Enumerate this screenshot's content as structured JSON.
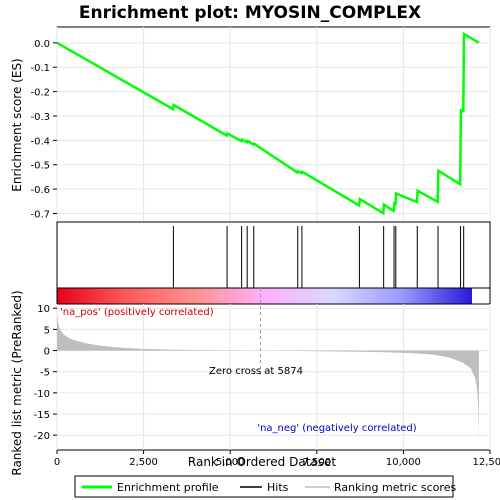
{
  "chart_data": [
    {
      "panel": "enrichment",
      "type": "line",
      "title": "Enrichment plot: MYOSIN_COMPLEX",
      "ylabel": "Enrichment score (ES)",
      "ylim": [
        -0.735,
        0.065
      ],
      "yticks": [
        0.0,
        -0.1,
        -0.2,
        -0.3,
        -0.4,
        -0.5,
        -0.6,
        -0.7
      ],
      "ytick_labels": [
        "0.0",
        "-0.1",
        "-0.2",
        "-0.3",
        "-0.4",
        "-0.5",
        "-0.6",
        "-0.7"
      ],
      "grid": true,
      "series": [
        {
          "color": "#00ff00",
          "x": [
            0,
            3350,
            3370,
            4900,
            4920,
            5320,
            5340,
            5480,
            5500,
            5670,
            5690,
            6940,
            6960,
            7060,
            7080,
            8720,
            8740,
            9420,
            9440,
            9720,
            9740,
            9770,
            9790,
            10390,
            10410,
            10990,
            11010,
            11640,
            11660,
            11730,
            11750,
            12180
          ],
          "y": [
            0.0,
            -0.272,
            -0.255,
            -0.38,
            -0.372,
            -0.403,
            -0.397,
            -0.408,
            -0.402,
            -0.417,
            -0.414,
            -0.532,
            -0.527,
            -0.535,
            -0.529,
            -0.667,
            -0.641,
            -0.699,
            -0.664,
            -0.69,
            -0.658,
            -0.66,
            -0.618,
            -0.653,
            -0.607,
            -0.652,
            -0.525,
            -0.58,
            -0.277,
            -0.28,
            0.036,
            0.0
          ]
        }
      ]
    },
    {
      "panel": "hits",
      "type": "scatter",
      "hit_positions": [
        3360,
        4910,
        5330,
        5490,
        5680,
        6950,
        7070,
        8730,
        9430,
        9730,
        9780,
        10400,
        11000,
        11650,
        11740
      ]
    },
    {
      "panel": "ranked_metric",
      "type": "area",
      "xlabel": "Rank in Ordered Dataset",
      "ylabel": "Ranked list metric (PreRanked)",
      "xlim": [
        0,
        12500
      ],
      "ylim": [
        -23.5,
        11
      ],
      "xticks": [
        0,
        2500,
        5000,
        7500,
        10000,
        12500
      ],
      "xtick_labels": [
        "0",
        "2,500",
        "5,000",
        "7,500",
        "10,000",
        "12,500"
      ],
      "yticks": [
        10,
        5,
        0,
        -5,
        -10,
        -15,
        -20
      ],
      "ytick_labels": [
        "10",
        "5",
        "0",
        "-5",
        "-10",
        "-15",
        "-20"
      ],
      "grid": true,
      "x": [
        0,
        40,
        100,
        200,
        350,
        600,
        900,
        1300,
        1800,
        2500,
        3500,
        4500,
        5500,
        5874,
        7000,
        8500,
        9500,
        10200,
        10800,
        11300,
        11700,
        11950,
        12080,
        12130,
        12160,
        12175,
        12180
      ],
      "values": [
        8.8,
        6.2,
        4.8,
        3.8,
        2.9,
        2.2,
        1.6,
        1.1,
        0.7,
        0.4,
        0.2,
        0.08,
        0.02,
        0.0,
        -0.1,
        -0.25,
        -0.4,
        -0.6,
        -0.9,
        -1.6,
        -2.8,
        -4.2,
        -6.8,
        -9.5,
        -13.5,
        -18.5,
        -22.0
      ],
      "color": "#bebebe",
      "zero_cross": 5874
    }
  ],
  "labels": {
    "title": "Enrichment plot: MYOSIN_COMPLEX",
    "es_ylabel": "Enrichment score (ES)",
    "metric_ylabel": "Ranked list metric (PreRanked)",
    "xlabel": "Rank in Ordered Dataset",
    "pos_label": "'na_pos' (positively correlated)",
    "neg_label": "'na_neg' (negatively correlated)",
    "zero_cross": "Zero cross at 5874"
  },
  "legend": {
    "items": [
      {
        "label": "Enrichment profile",
        "color": "#00ff00"
      },
      {
        "label": "Hits",
        "color": "#000000"
      },
      {
        "label": "Ranking metric scores",
        "color": "#bebebe"
      }
    ]
  },
  "colorbar": {
    "stops": [
      "#e8001a",
      "#ff5a5a",
      "#ff9090",
      "#ffb0ff",
      "#d8d8ff",
      "#9898ff",
      "#2a18d8"
    ]
  }
}
